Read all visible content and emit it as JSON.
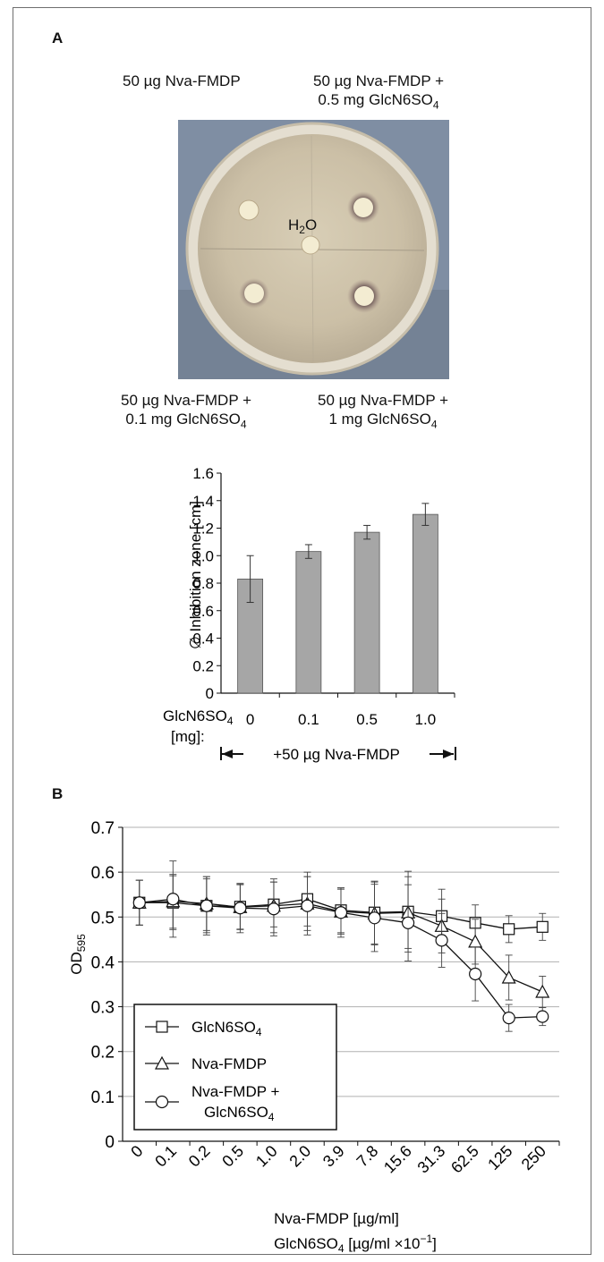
{
  "panel_a": {
    "letter": "A",
    "plate": {
      "top_left": "50 µg Nva-FMDP",
      "top_right_line1": "50 µg Nva-FMDP +",
      "top_right_line2": "0.5 mg GlcN6SO",
      "top_right_sub": "4",
      "center_label": "H",
      "center_sub": "2",
      "center_tail": "O",
      "bottom_left_line1": "50 µg Nva-FMDP +",
      "bottom_left_line2": "0.1 mg GlcN6SO",
      "bottom_left_sub": "4",
      "bottom_right_line1": "50 µg Nva-FMDP +",
      "bottom_right_line2": "1 mg GlcN6SO",
      "bottom_right_sub": "4"
    },
    "x_row_label_line1": "GlcN6SO",
    "x_row_label_sub": "4",
    "x_row_label_line2": "[mg]:",
    "bracket_label": "+50 µg Nva-FMDP"
  },
  "panel_b": {
    "letter": "B",
    "xlabel_line1": "Nva-FMDP [µg/ml]",
    "xlabel_line2_a": "GlcN6SO",
    "xlabel_line2_sub": "4",
    "xlabel_line2_b": " [µg/ml ×10",
    "xlabel_line2_sup": "−1",
    "xlabel_line2_c": "]",
    "ylabel": "OD",
    "ylabel_sub": "595"
  },
  "colors": {
    "bar_fill": "#a6a6a6",
    "grid": "#b0b0b0",
    "plate_bg": "#7f8ea3"
  },
  "chart_data": [
    {
      "type": "bar",
      "categories": [
        "0",
        "0.1",
        "0.5",
        "1.0"
      ],
      "values": [
        0.83,
        1.03,
        1.17,
        1.3
      ],
      "errors": [
        0.17,
        0.05,
        0.05,
        0.08
      ],
      "ylabel": "∅ Inhibition zone [cm]",
      "ylim": [
        0,
        1.6
      ],
      "yticks": [
        "0",
        "0.2",
        "0.4",
        "0.6",
        "0.8",
        "1.0",
        "1.2",
        "1.4",
        "1.6"
      ],
      "grid": false
    },
    {
      "type": "line",
      "categories": [
        "0",
        "0.1",
        "0.2",
        "0.5",
        "1.0",
        "2.0",
        "3.9",
        "7.8",
        "15.6",
        "31.3",
        "62.5",
        "125",
        "250"
      ],
      "ylim": [
        0,
        0.7
      ],
      "yticks": [
        "0",
        "0.1",
        "0.2",
        "0.3",
        "0.4",
        "0.5",
        "0.6",
        "0.7"
      ],
      "grid": true,
      "legend_position": "bottom-left",
      "series": [
        {
          "name": "GlcN6SO4",
          "marker": "square",
          "values": [
            0.532,
            0.532,
            0.525,
            0.523,
            0.528,
            0.54,
            0.515,
            0.51,
            0.512,
            0.502,
            0.487,
            0.473,
            0.478
          ],
          "errors": [
            0.05,
            0.06,
            0.06,
            0.05,
            0.05,
            0.06,
            0.05,
            0.07,
            0.09,
            0.06,
            0.04,
            0.03,
            0.03
          ]
        },
        {
          "name": "Nva-FMDP",
          "marker": "triangle",
          "values": [
            0.532,
            0.535,
            0.53,
            0.522,
            0.525,
            0.53,
            0.512,
            0.508,
            0.51,
            0.48,
            0.445,
            0.365,
            0.333
          ],
          "errors": [
            0.05,
            0.06,
            0.06,
            0.05,
            0.06,
            0.06,
            0.05,
            0.07,
            0.08,
            0.06,
            0.05,
            0.05,
            0.035
          ]
        },
        {
          "name": "Nva-FMDP + GlcN6SO4",
          "marker": "circle",
          "values": [
            0.532,
            0.54,
            0.525,
            0.52,
            0.518,
            0.525,
            0.51,
            0.498,
            0.487,
            0.448,
            0.373,
            0.275,
            0.278
          ],
          "errors": [
            0.05,
            0.085,
            0.065,
            0.055,
            0.06,
            0.065,
            0.055,
            0.075,
            0.085,
            0.06,
            0.06,
            0.03,
            0.02
          ]
        }
      ]
    }
  ]
}
